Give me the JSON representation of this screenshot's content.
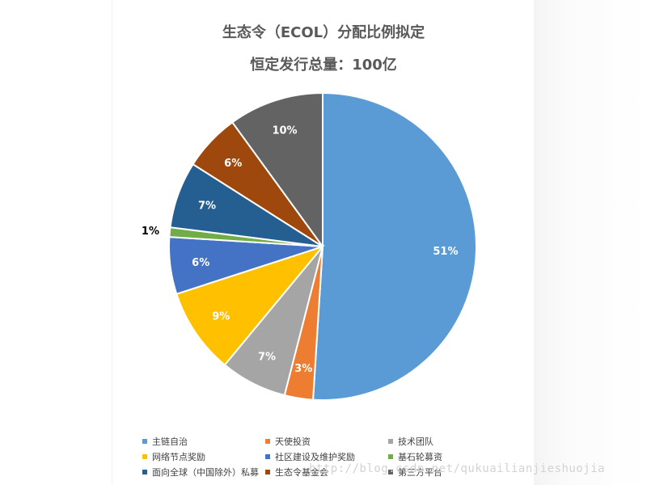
{
  "chart_data": {
    "type": "pie",
    "title": "生态令（ECOL）分配比例拟定",
    "subtitle": "恒定发行总量：100亿",
    "slices": [
      {
        "name": "主链自治",
        "value": 51,
        "label": "51%",
        "color": "#5b9bd5"
      },
      {
        "name": "天使投资",
        "value": 3,
        "label": "3%",
        "color": "#ed7d31"
      },
      {
        "name": "技术团队",
        "value": 7,
        "label": "7%",
        "color": "#a5a5a5"
      },
      {
        "name": "网络节点奖励",
        "value": 9,
        "label": "9%",
        "color": "#ffc000"
      },
      {
        "name": "社区建设及维护奖励",
        "value": 6,
        "label": "6%",
        "color": "#4472c4"
      },
      {
        "name": "基石轮募资",
        "value": 1,
        "label": "1%",
        "color": "#70ad47"
      },
      {
        "name": "面向全球（中国除外）私募",
        "value": 7,
        "label": "7%",
        "color": "#255e91"
      },
      {
        "name": "生态令基金会",
        "value": 6,
        "label": "6%",
        "color": "#9e480e"
      },
      {
        "name": "第三方平台",
        "value": 10,
        "label": "10%",
        "color": "#636363"
      }
    ],
    "legend_position": "bottom"
  },
  "watermark": "http://blog.csdn.net/qukuailianjieshuojia"
}
